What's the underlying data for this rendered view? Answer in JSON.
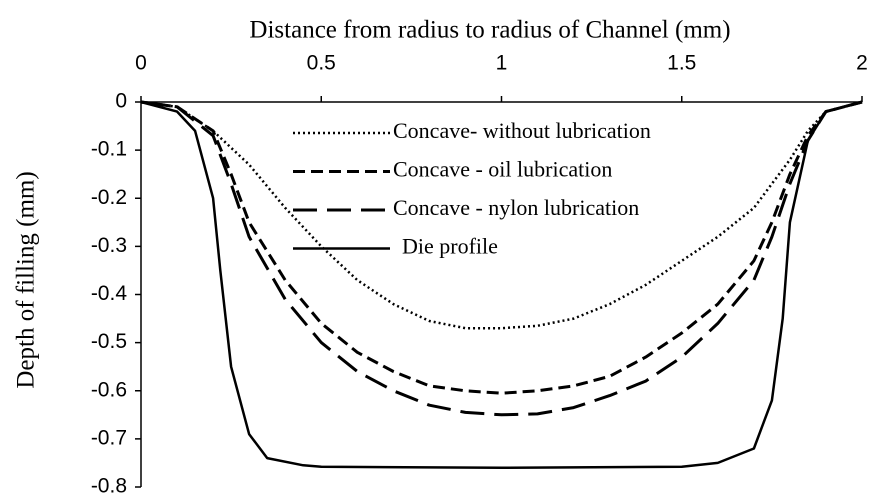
{
  "chart_data": {
    "type": "line",
    "title": "Distance from radius to radius of Channel (mm)",
    "y_label": "Depth of filling (mm)",
    "xlim": [
      0,
      2
    ],
    "xticks": [
      0,
      0.5,
      1,
      1.5,
      2
    ],
    "ylim": [
      -0.8,
      0
    ],
    "yticks": [
      0,
      -0.1,
      -0.2,
      -0.3,
      -0.4,
      -0.5,
      -0.6,
      -0.7,
      -0.8
    ],
    "x_axis_position": "top",
    "legend": "top",
    "series": [
      {
        "name": "Concave- without lubrication",
        "color": "#000000",
        "style": "dotted",
        "x": [
          0,
          0.1,
          0.2,
          0.3,
          0.4,
          0.5,
          0.6,
          0.7,
          0.8,
          0.9,
          1.0,
          1.1,
          1.2,
          1.3,
          1.4,
          1.5,
          1.6,
          1.7,
          1.75,
          1.8,
          1.85,
          1.9,
          2
        ],
        "values": [
          0,
          -0.01,
          -0.06,
          -0.13,
          -0.22,
          -0.3,
          -0.37,
          -0.42,
          -0.455,
          -0.47,
          -0.47,
          -0.465,
          -0.45,
          -0.42,
          -0.38,
          -0.33,
          -0.28,
          -0.22,
          -0.17,
          -0.12,
          -0.06,
          -0.02,
          0
        ]
      },
      {
        "name": "Concave - oil lubrication",
        "color": "#000000",
        "style": "dashed",
        "x": [
          0,
          0.1,
          0.2,
          0.25,
          0.3,
          0.4,
          0.5,
          0.6,
          0.7,
          0.8,
          0.9,
          1.0,
          1.1,
          1.2,
          1.3,
          1.4,
          1.5,
          1.6,
          1.7,
          1.75,
          1.8,
          1.85,
          1.9,
          2
        ],
        "values": [
          0,
          -0.01,
          -0.06,
          -0.15,
          -0.25,
          -0.37,
          -0.46,
          -0.52,
          -0.56,
          -0.59,
          -0.6,
          -0.605,
          -0.6,
          -0.59,
          -0.57,
          -0.53,
          -0.48,
          -0.42,
          -0.33,
          -0.25,
          -0.15,
          -0.07,
          -0.02,
          0
        ]
      },
      {
        "name": "Concave - nylon lubrication",
        "color": "#000000",
        "style": "longdash",
        "x": [
          0,
          0.1,
          0.2,
          0.25,
          0.3,
          0.4,
          0.5,
          0.6,
          0.7,
          0.8,
          0.9,
          1.0,
          1.1,
          1.2,
          1.3,
          1.4,
          1.5,
          1.6,
          1.7,
          1.75,
          1.8,
          1.85,
          1.9,
          2
        ],
        "values": [
          0,
          -0.01,
          -0.07,
          -0.17,
          -0.28,
          -0.41,
          -0.5,
          -0.56,
          -0.6,
          -0.63,
          -0.645,
          -0.65,
          -0.648,
          -0.635,
          -0.61,
          -0.58,
          -0.53,
          -0.46,
          -0.37,
          -0.28,
          -0.17,
          -0.08,
          -0.02,
          0
        ]
      },
      {
        "name": "Die profile",
        "color": "#000000",
        "style": "solid",
        "x": [
          0,
          0.1,
          0.15,
          0.2,
          0.22,
          0.25,
          0.3,
          0.35,
          0.45,
          0.5,
          1.0,
          1.5,
          1.6,
          1.7,
          1.75,
          1.78,
          1.8,
          1.85,
          1.9,
          2
        ],
        "values": [
          0,
          -0.02,
          -0.06,
          -0.2,
          -0.35,
          -0.55,
          -0.69,
          -0.74,
          -0.755,
          -0.758,
          -0.76,
          -0.758,
          -0.75,
          -0.72,
          -0.62,
          -0.45,
          -0.25,
          -0.08,
          -0.02,
          0
        ]
      }
    ]
  }
}
